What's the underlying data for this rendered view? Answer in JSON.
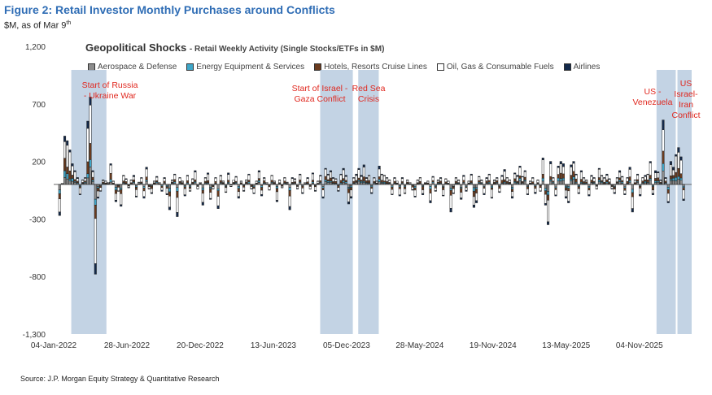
{
  "figure": {
    "title": "Figure 2: Retail Investor Monthly Purchases around Conflicts",
    "subtitle_main": "$M, as of Mar 9",
    "subtitle_sup": "th",
    "source": "Source: J.P. Morgan Equity Strategy & Quantitative Research"
  },
  "chart_data": {
    "type": "bar",
    "stacked": true,
    "title": "Geopolitical Shocks",
    "subtitle": "- Retail Weekly Activity (Single Stocks/ETFs in $M)",
    "xlabel": "",
    "ylabel": "",
    "ylim": [
      -1300,
      1200
    ],
    "y_ticks": [
      1200,
      700,
      200,
      -300,
      -800,
      -1300
    ],
    "x_tick_labels": [
      "04-Jan-2022",
      "28-Jun-2022",
      "20-Dec-2022",
      "13-Jun-2023",
      "05-Dec-2023",
      "28-May-2024",
      "19-Nov-2024",
      "13-May-2025",
      "04-Nov-2025"
    ],
    "x_range": [
      "2022-01-04",
      "2026-03-09"
    ],
    "legend_position": "top",
    "series": [
      {
        "name": "Aerospace & Defense",
        "color": "#8c8c8c"
      },
      {
        "name": "Energy Equipment & Services",
        "color": "#3fa7c9"
      },
      {
        "name": "Hotels, Resorts Cruise Lines",
        "color": "#6b3b1e"
      },
      {
        "name": "Oil, Gas & Consumable Fuels",
        "color": "#ffffff"
      },
      {
        "name": "Airlines",
        "color": "#13294b"
      }
    ],
    "weekly_notes": "Weekly stacked bars; values approximate from gridlines",
    "net_weekly_values": [
      -270,
      10,
      420,
      380,
      300,
      180,
      120,
      60,
      -90,
      40,
      60,
      550,
      760,
      120,
      -780,
      -120,
      -60,
      40,
      30,
      20,
      180,
      30,
      -150,
      -60,
      -190,
      80,
      50,
      -30,
      40,
      80,
      -110,
      20,
      60,
      -120,
      150,
      -40,
      -80,
      30,
      70,
      20,
      -60,
      60,
      -90,
      -220,
      40,
      90,
      -280,
      60,
      30,
      -100,
      80,
      -60,
      50,
      120,
      -40,
      20,
      -180,
      60,
      100,
      -130,
      -40,
      60,
      -210,
      80,
      30,
      -70,
      100,
      -20,
      40,
      70,
      -120,
      30,
      -60,
      40,
      90,
      -40,
      -80,
      30,
      120,
      -100,
      60,
      20,
      -50,
      80,
      30,
      -150,
      40,
      -30,
      60,
      20,
      -220,
      60,
      50,
      -40,
      90,
      -80,
      20,
      60,
      -40,
      100,
      -60,
      30,
      80,
      -120,
      140,
      90,
      120,
      60,
      50,
      -60,
      90,
      140,
      80,
      -170,
      -120,
      60,
      90,
      140,
      80,
      170,
      60,
      80,
      -80,
      60,
      30,
      160,
      90,
      80,
      60,
      40,
      -90,
      60,
      30,
      -100,
      60,
      -80,
      40,
      20,
      -50,
      -110,
      40,
      60,
      -90,
      20,
      30,
      -160,
      70,
      -60,
      40,
      60,
      -100,
      50,
      30,
      -240,
      -80,
      60,
      40,
      -130,
      80,
      -60,
      30,
      90,
      -200,
      -160,
      70,
      40,
      -90,
      60,
      90,
      -120,
      40,
      60,
      -70,
      80,
      130,
      60,
      40,
      -120,
      100,
      80,
      160,
      70,
      120,
      -90,
      30,
      60,
      -80,
      40,
      -60,
      230,
      -180,
      -350,
      200,
      60,
      -100,
      160,
      200,
      180,
      -120,
      -160,
      170,
      200,
      90,
      -80,
      120,
      60,
      40,
      -100,
      80,
      60,
      -40,
      140,
      80,
      60,
      90,
      50,
      -40,
      -80,
      60,
      120,
      70,
      -90,
      60,
      150,
      -240,
      40,
      90,
      -100,
      60,
      80,
      90,
      200,
      -90,
      120,
      110,
      40,
      560,
      60,
      -160,
      200,
      150,
      260,
      320,
      240,
      -140
    ],
    "annotations": [
      {
        "label": "Start of Russia - Ukraine War",
        "start": "2022-02-15",
        "end": "2022-05-10"
      },
      {
        "label": "Start of Israel - Gaza Conflict",
        "start": "2023-10-03",
        "end": "2023-12-20"
      },
      {
        "label": "Red Sea Crisis",
        "start": "2024-01-02",
        "end": "2024-02-20"
      },
      {
        "label": "US - Venezuela",
        "start": "2025-12-15",
        "end": "2026-01-30"
      },
      {
        "label": "US Israel- Iran Conflict",
        "start": "2026-02-03",
        "end": "2026-03-09"
      }
    ]
  }
}
